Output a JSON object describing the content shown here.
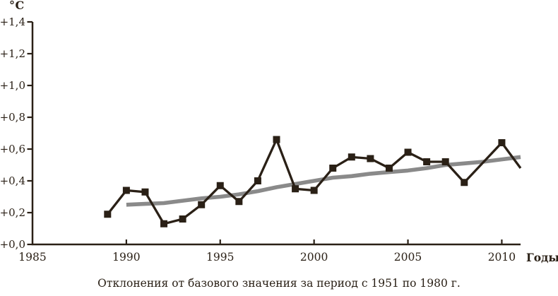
{
  "chart_data": {
    "type": "line",
    "y_unit_label": "°C",
    "x_axis_title": "Годы",
    "caption": "Отклонения от базового значения за период с 1951 по 1980 г.",
    "xlim": [
      1985,
      2011
    ],
    "ylim": [
      0,
      1.4
    ],
    "grid": false,
    "legend": "none",
    "text_color": "#2a2016",
    "x_ticks": [
      {
        "year": 1985,
        "label": "1985"
      },
      {
        "year": 1990,
        "label": "1990"
      },
      {
        "year": 1995,
        "label": "1995"
      },
      {
        "year": 2000,
        "label": "2000"
      },
      {
        "year": 2005,
        "label": "2005"
      },
      {
        "year": 2010,
        "label": "2010"
      }
    ],
    "y_ticks": [
      {
        "value": 0.0,
        "label": "+0,0"
      },
      {
        "value": 0.2,
        "label": "+0,2"
      },
      {
        "value": 0.4,
        "label": "+0,4"
      },
      {
        "value": 0.6,
        "label": "+0,6"
      },
      {
        "value": 0.8,
        "label": "+0,8"
      },
      {
        "value": 1.0,
        "label": "+1,0"
      },
      {
        "value": 1.2,
        "label": "+1,2"
      },
      {
        "value": 1.4,
        "label": "+1,4"
      }
    ],
    "series": [
      {
        "name": "annual-anomaly",
        "style": "line-with-square-markers",
        "color": "#2a2016",
        "points": [
          {
            "year": 1989,
            "value": 0.19
          },
          {
            "year": 1990,
            "value": 0.34
          },
          {
            "year": 1991,
            "value": 0.33
          },
          {
            "year": 1992,
            "value": 0.13
          },
          {
            "year": 1993,
            "value": 0.16
          },
          {
            "year": 1994,
            "value": 0.25
          },
          {
            "year": 1995,
            "value": 0.37
          },
          {
            "year": 1996,
            "value": 0.27
          },
          {
            "year": 1997,
            "value": 0.4
          },
          {
            "year": 1998,
            "value": 0.66
          },
          {
            "year": 1999,
            "value": 0.35
          },
          {
            "year": 2000,
            "value": 0.34
          },
          {
            "year": 2001,
            "value": 0.48
          },
          {
            "year": 2002,
            "value": 0.55
          },
          {
            "year": 2003,
            "value": 0.54
          },
          {
            "year": 2004,
            "value": 0.48
          },
          {
            "year": 2005,
            "value": 0.58
          },
          {
            "year": 2006,
            "value": 0.52
          },
          {
            "year": 2007,
            "value": 0.52
          },
          {
            "year": 2008,
            "value": 0.39
          },
          {
            "year": 2010,
            "value": 0.64
          },
          {
            "year": 2011,
            "value": 0.48,
            "marker": false
          }
        ]
      },
      {
        "name": "smoothed-trend",
        "style": "thick-line",
        "color": "#8a8a8a",
        "points": [
          [
            1990,
            0.25
          ],
          [
            1991,
            0.255
          ],
          [
            1992,
            0.26
          ],
          [
            1993,
            0.275
          ],
          [
            1994,
            0.29
          ],
          [
            1995,
            0.3
          ],
          [
            1996,
            0.315
          ],
          [
            1997,
            0.335
          ],
          [
            1998,
            0.36
          ],
          [
            1999,
            0.38
          ],
          [
            2000,
            0.4
          ],
          [
            2001,
            0.42
          ],
          [
            2002,
            0.43
          ],
          [
            2003,
            0.445
          ],
          [
            2004,
            0.455
          ],
          [
            2005,
            0.465
          ],
          [
            2006,
            0.48
          ],
          [
            2007,
            0.5
          ],
          [
            2008,
            0.51
          ],
          [
            2009,
            0.52
          ],
          [
            2010,
            0.535
          ],
          [
            2011,
            0.55
          ]
        ]
      }
    ]
  }
}
